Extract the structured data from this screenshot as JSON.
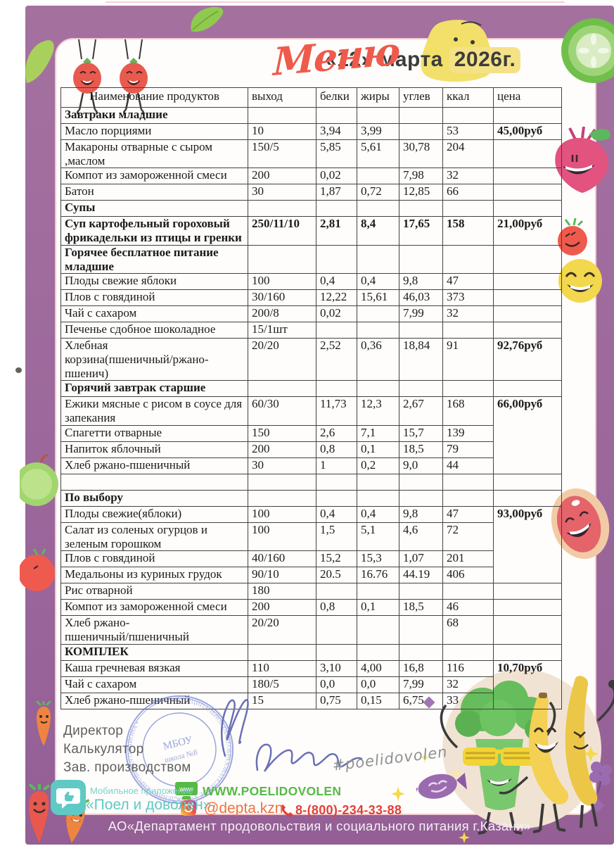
{
  "page": {
    "title_script": "Меню",
    "date_prefix": "«12» марта",
    "date_year": "2026г.",
    "bottom_bar": "АО«Департамент продовольствия и социального питания г.Казани»"
  },
  "table": {
    "columns": [
      "Наименование продуктов",
      "выход",
      "белки",
      "жиры",
      "углев",
      "ккал",
      "цена"
    ],
    "rows": [
      {
        "section": true,
        "name": "Завтраки младшие"
      },
      {
        "name": "Масло порциями",
        "out": "10",
        "protein": "3,94",
        "fat": "3,99",
        "carb": "",
        "kcal": "53",
        "price": "45,00руб"
      },
      {
        "name": "Макароны отварные с сыром\n,маслом",
        "out": "150/5",
        "protein": "5,85",
        "fat": "5,61",
        "carb": "30,78",
        "kcal": "204",
        "price": ""
      },
      {
        "name": "Компот из замороженной смеси",
        "out": "200",
        "protein": "0,02",
        "fat": "",
        "carb": "7,98",
        "kcal": "32",
        "price": ""
      },
      {
        "name": "Батон",
        "out": "30",
        "protein": "1,87",
        "fat": "0,72",
        "carb": "12,85",
        "kcal": "66",
        "price": ""
      },
      {
        "section": true,
        "name": "Супы"
      },
      {
        "name": "Суп картофельный гороховый\nфрикадельки из птицы и гренки",
        "bold": true,
        "out": "250/11/10",
        "protein": "2,81",
        "fat": "8,4",
        "carb": "17,65",
        "kcal": "158",
        "price": "21,00руб"
      },
      {
        "section": true,
        "name": "Горячее бесплатное питание\nмладшие"
      },
      {
        "name": "Плоды свежие яблоки",
        "out": "100",
        "protein": "0,4",
        "fat": "0,4",
        "carb": "9,8",
        "kcal": "47",
        "price": ""
      },
      {
        "name": "Плов  с говядиной",
        "out": "30/160",
        "protein": "12,22",
        "fat": "15,61",
        "carb": "46,03",
        "kcal": "373",
        "price": ""
      },
      {
        "name": "Чай с сахаром",
        "out": "200/8",
        "protein": "0,02",
        "fat": "",
        "carb": "7,99",
        "kcal": "32",
        "price": ""
      },
      {
        "name": "Печенье сдобное шоколадное",
        "out": "15/1шт",
        "protein": "",
        "fat": "",
        "carb": "",
        "kcal": "",
        "price": ""
      },
      {
        "name": "Хлебная\nкорзина(пшеничный/ржано-пшенич)",
        "out": "20/20",
        "protein": "2,52",
        "fat": "0,36",
        "carb": "18,84",
        "kcal": "91",
        "price": "92,76руб"
      },
      {
        "section": true,
        "name": "Горячий завтрак старшие"
      },
      {
        "name": "Ежики мясные с рисом в соусе для\nзапекания",
        "out": "60/30",
        "protein": "11,73",
        "fat": "12,3",
        "carb": "2,67",
        "kcal": "168",
        "price": "66,00руб",
        "price_span": 4
      },
      {
        "name": "Спагетти отварные",
        "out": "150",
        "protein": "2,6",
        "fat": "7,1",
        "carb": "15,7",
        "kcal": "139",
        "price_skip": true
      },
      {
        "name": "Напиток яблочный",
        "out": "200",
        "protein": "0,8",
        "fat": "0,1",
        "carb": "18,5",
        "kcal": "79",
        "price_skip": true
      },
      {
        "name": "Хлеб ржано-пшеничный",
        "out": "30",
        "protein": "1",
        "fat": "0,2",
        "carb": "9,0",
        "kcal": "44",
        "price_skip": true
      },
      {
        "empty": true
      },
      {
        "section": true,
        "name": "По выбору"
      },
      {
        "name": "Плоды свежие(яблоки)",
        "out": "100",
        "protein": "0,4",
        "fat": "0,4",
        "carb": "9,8",
        "kcal": "47",
        "price": "93,00руб",
        "price_span": 4
      },
      {
        "name": "Салат из  соленых огурцов и\nзеленым горошком",
        "out": "100",
        "protein": "1,5",
        "fat": "5,1",
        "carb": "4,6",
        "kcal": "72",
        "price_skip": true
      },
      {
        "name": "Плов с говядиной",
        "out": "40/160",
        "protein": "15,2",
        "fat": "15,3",
        "carb": "1,07",
        "kcal": "201",
        "price_skip": true
      },
      {
        "name": "Медальоны  из куриных грудок",
        "out": "90/10",
        "protein": "20.5",
        "fat": "16.76",
        "carb": "44.19",
        "kcal": "406",
        "price_skip": true
      },
      {
        "name": "Рис отварной",
        "out": "180",
        "protein": "",
        "fat": "",
        "carb": "",
        "kcal": "",
        "price": ""
      },
      {
        "name": "Компот из замороженной смеси",
        "out": "200",
        "protein": "0,8",
        "fat": "0,1",
        "carb": "18,5",
        "kcal": "46",
        "price": ""
      },
      {
        "name": "Хлеб ржано-\nпшеничный/пшеничный",
        "out": "20/20",
        "protein": "",
        "fat": "",
        "carb": "",
        "kcal": "68",
        "price": ""
      },
      {
        "section": true,
        "name": "КОМПЛЕК"
      },
      {
        "name": "Каша гречневая вязкая",
        "out": "110",
        "protein": "3,10",
        "fat": "4,00",
        "carb": "16,8",
        "kcal": "116",
        "price": "10,70руб",
        "price_span": 3
      },
      {
        "name": "Чай с сахаром",
        "out": "180/5",
        "protein": "0,0",
        "fat": "0,0",
        "carb": "7,99",
        "kcal": "32",
        "price_skip": true
      },
      {
        "name": "Хлеб ржано-пшеничный",
        "out": "15",
        "protein": "0,75",
        "fat": "0,15",
        "carb": "6,75",
        "kcal": "33",
        "price_skip": true
      }
    ]
  },
  "footer": {
    "signatories": [
      "Директор",
      "Калькулятор",
      "Зав. производством"
    ],
    "stamp_text_center": "МБОУ",
    "stamp_text_inner": "школа №8",
    "hashtag": "#poelidovolen",
    "app_caption": "Мобильное приложение",
    "app_name": "«Поел и доволен»",
    "website": "WWW.POELIDOVOLEN",
    "www_icon_label": "www",
    "instagram": "@depta.kzn",
    "phone": "8-(800)-234-33-88"
  },
  "colors": {
    "frame_purple": "#9c689c",
    "title_red": "#ee5a4b",
    "year_highlight": "#f5e286",
    "website_green": "#57b947",
    "app_teal": "#5fc9c4",
    "instagram_orange": "#f0713d",
    "phone_red": "#e2403a",
    "stamp_blue": "#5a6cc9"
  }
}
